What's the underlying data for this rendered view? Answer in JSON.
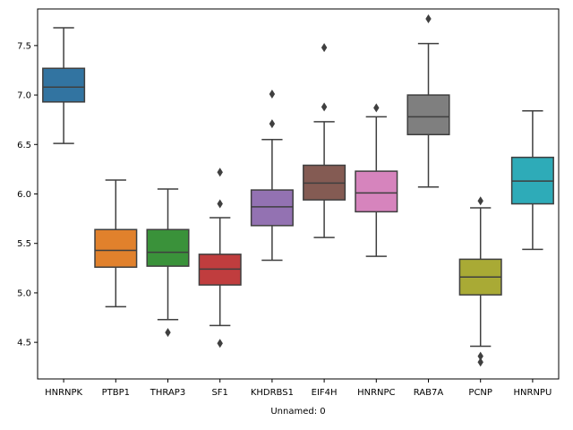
{
  "chart_data": {
    "type": "boxplot",
    "xlabel": "Unnamed: 0",
    "ylabel": "",
    "ylim": [
      4.13,
      7.87
    ],
    "yticks": [
      4.5,
      5.0,
      5.5,
      6.0,
      6.5,
      7.0,
      7.5
    ],
    "ytick_labels": [
      "4.5",
      "5.0",
      "5.5",
      "6.0",
      "6.5",
      "7.0",
      "7.5"
    ],
    "grid": false,
    "categories": [
      "HNRNPK",
      "PTBP1",
      "THRAP3",
      "SF1",
      "KHDRBS1",
      "EIF4H",
      "HNRNPC",
      "RAB7A",
      "PCNP",
      "HNRNPU"
    ],
    "boxes": [
      {
        "category": "HNRNPK",
        "whisker_low": 6.51,
        "q1": 6.93,
        "median": 7.08,
        "q3": 7.27,
        "whisker_high": 7.68,
        "outliers": [],
        "color": "#3274a1"
      },
      {
        "category": "PTBP1",
        "whisker_low": 4.86,
        "q1": 5.26,
        "median": 5.43,
        "q3": 5.64,
        "whisker_high": 6.14,
        "outliers": [],
        "color": "#e1812c"
      },
      {
        "category": "THRAP3",
        "whisker_low": 4.73,
        "q1": 5.27,
        "median": 5.41,
        "q3": 5.64,
        "whisker_high": 6.05,
        "outliers": [
          4.6
        ],
        "color": "#3a923a"
      },
      {
        "category": "SF1",
        "whisker_low": 4.67,
        "q1": 5.08,
        "median": 5.24,
        "q3": 5.39,
        "whisker_high": 5.76,
        "outliers": [
          4.49,
          5.9,
          6.22
        ],
        "color": "#c03d3e"
      },
      {
        "category": "KHDRBS1",
        "whisker_low": 5.33,
        "q1": 5.68,
        "median": 5.87,
        "q3": 6.04,
        "whisker_high": 6.55,
        "outliers": [
          6.71,
          7.01
        ],
        "color": "#9372b2"
      },
      {
        "category": "EIF4H",
        "whisker_low": 5.56,
        "q1": 5.94,
        "median": 6.11,
        "q3": 6.29,
        "whisker_high": 6.73,
        "outliers": [
          6.88,
          7.48
        ],
        "color": "#845b53"
      },
      {
        "category": "HNRNPC",
        "whisker_low": 5.37,
        "q1": 5.82,
        "median": 6.01,
        "q3": 6.23,
        "whisker_high": 6.78,
        "outliers": [
          6.87
        ],
        "color": "#d684bd"
      },
      {
        "category": "RAB7A",
        "whisker_low": 6.07,
        "q1": 6.6,
        "median": 6.78,
        "q3": 7.0,
        "whisker_high": 7.52,
        "outliers": [
          7.77
        ],
        "color": "#7f7f7f"
      },
      {
        "category": "PCNP",
        "whisker_low": 4.46,
        "q1": 4.98,
        "median": 5.16,
        "q3": 5.34,
        "whisker_high": 5.86,
        "outliers": [
          5.93,
          4.36,
          4.3
        ],
        "color": "#a9aa35"
      },
      {
        "category": "HNRNPU",
        "whisker_low": 5.44,
        "q1": 5.9,
        "median": 6.13,
        "q3": 6.37,
        "whisker_high": 6.84,
        "outliers": [],
        "color": "#2eabb8"
      }
    ]
  }
}
